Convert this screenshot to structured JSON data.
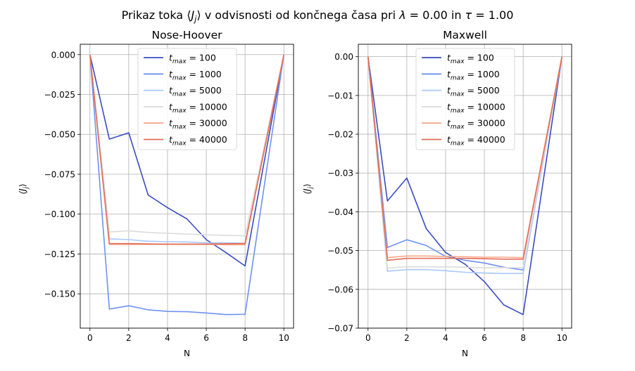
{
  "suptitle": "Prikaz toka ⟨J_j⟩ v odvisnosti od končnega časa pri λ = 0.00 in τ = 1.00",
  "chart_data": [
    {
      "type": "line",
      "title": "Nose-Hoover",
      "xlabel": "N",
      "ylabel": "⟨J_j⟩",
      "xlim": [
        -0.5,
        10.5
      ],
      "ylim": [
        -0.1715,
        0.0065
      ],
      "xticks": [
        "0",
        "2",
        "4",
        "6",
        "8",
        "10"
      ],
      "yticks": [
        "0.000",
        "−0.025",
        "−0.050",
        "−0.075",
        "−0.100",
        "−0.125",
        "−0.150"
      ],
      "grid": true,
      "legend_position": "top",
      "x": [
        0,
        1,
        2,
        3,
        4,
        5,
        6,
        7,
        8,
        10
      ],
      "series": [
        {
          "name": "t_max = 100",
          "color": "#3b4cc0",
          "values": [
            0,
            -0.053,
            -0.049,
            -0.088,
            -0.096,
            -0.103,
            -0.116,
            -0.124,
            -0.1325,
            0
          ]
        },
        {
          "name": "t_max = 1000",
          "color": "#6f92f3",
          "values": [
            0,
            -0.1595,
            -0.1575,
            -0.16,
            -0.161,
            -0.1612,
            -0.162,
            -0.163,
            -0.1628,
            0
          ]
        },
        {
          "name": "t_max = 5000",
          "color": "#aac7fd",
          "values": [
            0,
            -0.1155,
            -0.116,
            -0.117,
            -0.1173,
            -0.1175,
            -0.118,
            -0.118,
            -0.1182,
            0
          ]
        },
        {
          "name": "t_max = 10000",
          "color": "#dddcdc",
          "values": [
            0,
            -0.1112,
            -0.1105,
            -0.1115,
            -0.112,
            -0.1125,
            -0.113,
            -0.1133,
            -0.1136,
            0
          ]
        },
        {
          "name": "t_max = 30000",
          "color": "#f7a889",
          "values": [
            0,
            -0.119,
            -0.119,
            -0.119,
            -0.119,
            -0.119,
            -0.119,
            -0.1192,
            -0.1192,
            0
          ]
        },
        {
          "name": "t_max = 40000",
          "color": "#e36c55",
          "values": [
            0,
            -0.1185,
            -0.1185,
            -0.1187,
            -0.1188,
            -0.1188,
            -0.1188,
            -0.1186,
            -0.1185,
            0
          ]
        }
      ]
    },
    {
      "type": "line",
      "title": "Maxwell",
      "xlabel": "N",
      "ylabel": "⟨J_j⟩",
      "xlim": [
        -0.5,
        10.5
      ],
      "ylim": [
        -0.07,
        0.0032
      ],
      "xticks": [
        "0",
        "2",
        "4",
        "6",
        "8",
        "10"
      ],
      "yticks": [
        "0.00",
        "−0.01",
        "−0.02",
        "−0.03",
        "−0.04",
        "−0.05",
        "−0.06",
        "−0.07"
      ],
      "grid": true,
      "legend_position": "top",
      "x": [
        0,
        1,
        2,
        3,
        4,
        5,
        6,
        7,
        8,
        10
      ],
      "series": [
        {
          "name": "t_max = 100",
          "color": "#3b4cc0",
          "values": [
            0,
            -0.0372,
            -0.0313,
            -0.0443,
            -0.0505,
            -0.0535,
            -0.058,
            -0.064,
            -0.0665,
            0
          ]
        },
        {
          "name": "t_max = 1000",
          "color": "#6f92f3",
          "values": [
            0,
            -0.0492,
            -0.0472,
            -0.0487,
            -0.0515,
            -0.0525,
            -0.0532,
            -0.0543,
            -0.055,
            0
          ]
        },
        {
          "name": "t_max = 5000",
          "color": "#aac7fd",
          "values": [
            0,
            -0.0553,
            -0.0549,
            -0.0549,
            -0.0552,
            -0.0556,
            -0.0558,
            -0.0559,
            -0.0559,
            0
          ]
        },
        {
          "name": "t_max = 10000",
          "color": "#dddcdc",
          "values": [
            0,
            -0.0545,
            -0.0542,
            -0.0542,
            -0.0542,
            -0.0543,
            -0.0544,
            -0.0544,
            -0.0544,
            0
          ]
        },
        {
          "name": "t_max = 30000",
          "color": "#f7a889",
          "values": [
            0,
            -0.0518,
            -0.0514,
            -0.0514,
            -0.0515,
            -0.0516,
            -0.0517,
            -0.0517,
            -0.0518,
            0
          ]
        },
        {
          "name": "t_max = 40000",
          "color": "#e36c55",
          "values": [
            0,
            -0.0525,
            -0.052,
            -0.052,
            -0.052,
            -0.052,
            -0.0521,
            -0.0522,
            -0.0522,
            0
          ]
        }
      ]
    }
  ]
}
